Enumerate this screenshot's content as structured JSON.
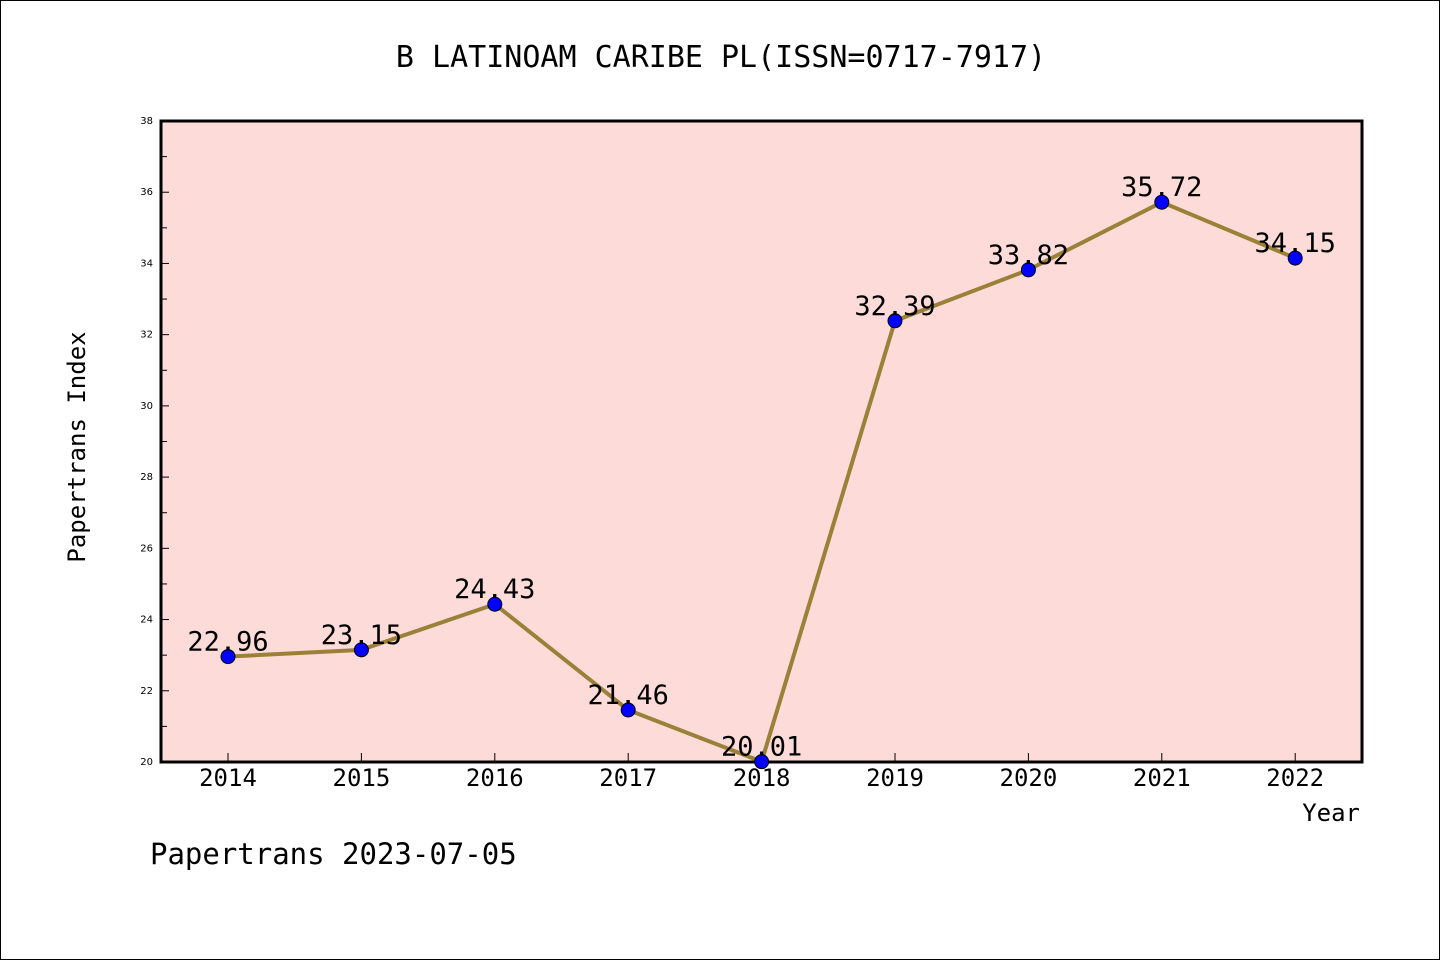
{
  "chart_data": {
    "type": "line",
    "title": "B LATINOAM CARIBE PL(ISSN=0717-7917)",
    "xlabel": "Year",
    "ylabel": "Papertrans Index",
    "footer": "Papertrans 2023-07-05",
    "categories": [
      "2014",
      "2015",
      "2016",
      "2017",
      "2018",
      "2019",
      "2020",
      "2021",
      "2022"
    ],
    "series": [
      {
        "values": [
          22.96,
          23.15,
          24.43,
          21.46,
          20.01,
          32.39,
          33.82,
          35.72,
          34.15
        ],
        "labels": [
          "22.96",
          "23.15",
          "24.43",
          "21.46",
          "20.01",
          "32.39",
          "33.82",
          "35.72",
          "34.15"
        ]
      }
    ],
    "ylim": [
      20,
      38
    ],
    "yticks": [
      "20",
      "22",
      "24",
      "26",
      "28",
      "30",
      "32",
      "34",
      "36",
      "38"
    ],
    "grid": false,
    "colors": {
      "plot_background": "#fddbd8",
      "line": "#9b8038",
      "marker": "#0000ff"
    }
  }
}
